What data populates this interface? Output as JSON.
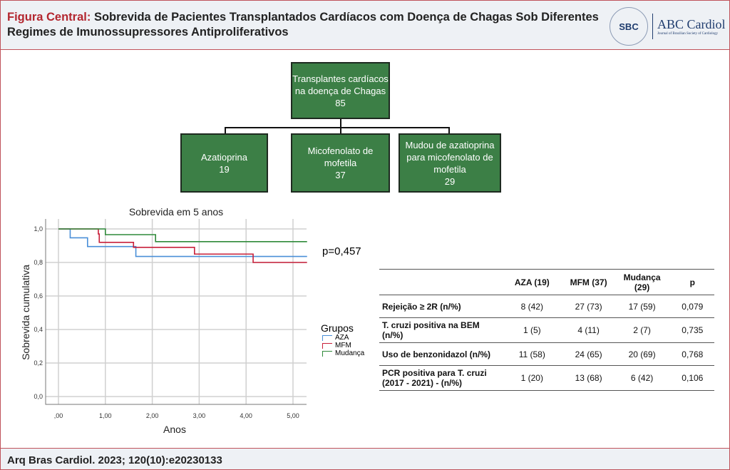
{
  "header": {
    "title_prefix": "Figura Central:",
    "title": "Sobrevida de Pacientes Transplantados Cardíacos com Doença de Chagas Sob Diferentes Regimes de Imunossupressores Antiproliferativos",
    "logo_seal": "SBC",
    "brand": "ABC Cardiol",
    "brand_sub": "Journal of Brazilian Society of Cardiology"
  },
  "flow": {
    "root": [
      "Transplantes cardíacos",
      "na doença de Chagas",
      "85"
    ],
    "children": [
      [
        "Azatioprina",
        "19"
      ],
      [
        "Micofenolato de",
        "mofetila",
        "37"
      ],
      [
        "Mudou de azatioprina",
        "para micofenolato de",
        "mofetila",
        "29"
      ]
    ]
  },
  "chart_data": {
    "type": "line",
    "title": "Sobrevida em 5 anos",
    "xlabel": "Anos",
    "ylabel": "Sobrevida cumulativa",
    "xlim": [
      -0.3,
      5.3
    ],
    "ylim": [
      -0.05,
      1.05
    ],
    "xticks": [
      ",00",
      "1,00",
      "2,00",
      "3,00",
      "4,00",
      "5,00"
    ],
    "yticks": [
      "0,0",
      "0,2",
      "0,4",
      "0,6",
      "0,8",
      "1,0"
    ],
    "legend_title": "Grupos",
    "pvalue": "p=0,457",
    "series": [
      {
        "name": "AZA",
        "color": "#4a8fd8",
        "steps": [
          [
            0,
            1.0
          ],
          [
            0.25,
            0.947
          ],
          [
            0.62,
            0.895
          ],
          [
            1.65,
            0.836
          ],
          [
            5.3,
            0.836
          ]
        ]
      },
      {
        "name": "MFM",
        "color": "#c8203a",
        "steps": [
          [
            0,
            1.0
          ],
          [
            0.85,
            0.97
          ],
          [
            0.87,
            0.92
          ],
          [
            1.6,
            0.89
          ],
          [
            2.9,
            0.85
          ],
          [
            4.15,
            0.8
          ],
          [
            5.3,
            0.8
          ]
        ]
      },
      {
        "name": "Mudança",
        "color": "#2f8a3a",
        "steps": [
          [
            0,
            1.0
          ],
          [
            1.0,
            0.966
          ],
          [
            2.07,
            0.924
          ],
          [
            5.3,
            0.924
          ]
        ]
      }
    ]
  },
  "table": {
    "headers": [
      "",
      "AZA (19)",
      "MFM (37)",
      "Mudança (29)",
      "p"
    ],
    "rows": [
      [
        "Rejeição  ≥ 2R (n/%)",
        "8 (42)",
        "27 (73)",
        "17 (59)",
        "0,079"
      ],
      [
        "T. cruzi positiva na BEM (n/%)",
        "1 (5)",
        "4 (11)",
        "2 (7)",
        "0,735"
      ],
      [
        "Uso de benzonidazol (n/%)",
        "11 (58)",
        "24 (65)",
        "20 (69)",
        "0,768"
      ],
      [
        "PCR positiva para T. cruzi (2017 - 2021) - (n/%)",
        "1 (20)",
        "13 (68)",
        "6 (42)",
        "0,106"
      ]
    ]
  },
  "footer": {
    "citation": "Arq Bras Cardiol. 2023; 120(10):e20230133"
  }
}
